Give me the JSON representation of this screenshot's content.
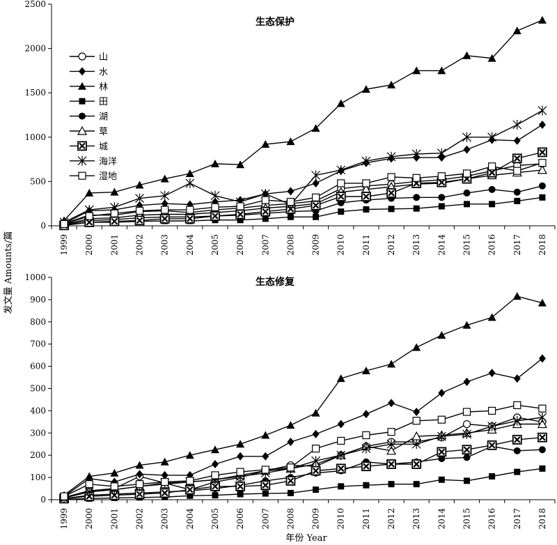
{
  "chart_data": [
    {
      "type": "line",
      "title": "生态保护",
      "xlabel": "",
      "ylabel": "",
      "x": [
        "1999",
        "2000",
        "2001",
        "2002",
        "2003",
        "2004",
        "2005",
        "2006",
        "2007",
        "2008",
        "2009",
        "2010",
        "2011",
        "2012",
        "2013",
        "2014",
        "2015",
        "2016",
        "2017",
        "2018"
      ],
      "ylim": [
        0,
        2500
      ],
      "yticks": [
        0,
        500,
        1000,
        1500,
        2000,
        2500
      ],
      "legend_position": "top-left",
      "series": [
        {
          "name": "山",
          "marker": "circle-open",
          "values": [
            25,
            120,
            120,
            160,
            170,
            150,
            180,
            200,
            230,
            250,
            280,
            420,
            450,
            470,
            500,
            520,
            560,
            620,
            680,
            700
          ]
        },
        {
          "name": "水",
          "marker": "diamond",
          "values": [
            25,
            170,
            180,
            230,
            250,
            240,
            270,
            290,
            360,
            390,
            480,
            620,
            710,
            760,
            770,
            770,
            860,
            970,
            960,
            1140
          ]
        },
        {
          "name": "林",
          "marker": "triangle",
          "values": [
            60,
            370,
            380,
            460,
            530,
            590,
            700,
            690,
            920,
            950,
            1100,
            1380,
            1540,
            1590,
            1750,
            1750,
            1920,
            1890,
            2200,
            2320
          ]
        },
        {
          "name": "田",
          "marker": "square",
          "values": [
            5,
            40,
            40,
            50,
            55,
            55,
            65,
            65,
            80,
            100,
            100,
            160,
            185,
            190,
            195,
            220,
            245,
            245,
            280,
            320
          ]
        },
        {
          "name": "湖",
          "marker": "circle",
          "values": [
            10,
            60,
            70,
            90,
            100,
            100,
            110,
            120,
            140,
            160,
            170,
            260,
            290,
            310,
            320,
            320,
            370,
            410,
            380,
            450
          ]
        },
        {
          "name": "草",
          "marker": "triangle-open",
          "values": [
            15,
            80,
            90,
            120,
            130,
            130,
            150,
            170,
            200,
            220,
            250,
            380,
            410,
            440,
            470,
            480,
            530,
            570,
            600,
            630
          ]
        },
        {
          "name": "城",
          "marker": "boxed-x",
          "values": [
            5,
            40,
            50,
            60,
            80,
            80,
            110,
            130,
            160,
            190,
            230,
            330,
            330,
            370,
            480,
            490,
            530,
            600,
            760,
            830
          ]
        },
        {
          "name": "海洋",
          "marker": "asterisk",
          "values": [
            40,
            180,
            210,
            310,
            340,
            480,
            340,
            270,
            360,
            240,
            570,
            630,
            730,
            780,
            810,
            820,
            1000,
            1000,
            1140,
            1300
          ]
        },
        {
          "name": "湿地",
          "marker": "square-open",
          "values": [
            20,
            110,
            140,
            170,
            180,
            180,
            210,
            220,
            290,
            270,
            320,
            480,
            480,
            550,
            540,
            560,
            590,
            670,
            620,
            710
          ]
        }
      ]
    },
    {
      "type": "line",
      "title": "生态修复",
      "xlabel": "年份 Year",
      "ylabel": "发文量 Amounts/篇",
      "x": [
        "1999",
        "2000",
        "2001",
        "2002",
        "2003",
        "2004",
        "2005",
        "2006",
        "2007",
        "2008",
        "2009",
        "2010",
        "2011",
        "2012",
        "2013",
        "2014",
        "2015",
        "2016",
        "2017",
        "2018"
      ],
      "ylim": [
        0,
        1000
      ],
      "yticks": [
        0,
        100,
        200,
        300,
        400,
        500,
        600,
        700,
        800,
        900,
        1000
      ],
      "series": [
        {
          "name": "山",
          "marker": "circle-open",
          "values": [
            10,
            40,
            50,
            105,
            75,
            45,
            80,
            100,
            130,
            155,
            150,
            200,
            240,
            260,
            260,
            280,
            340,
            330,
            370,
            350
          ]
        },
        {
          "name": "水",
          "marker": "diamond",
          "values": [
            15,
            95,
            80,
            115,
            110,
            110,
            160,
            195,
            195,
            260,
            295,
            340,
            385,
            435,
            395,
            480,
            530,
            570,
            545,
            635
          ]
        },
        {
          "name": "林",
          "marker": "triangle",
          "values": [
            20,
            105,
            120,
            155,
            170,
            200,
            225,
            250,
            290,
            335,
            390,
            545,
            580,
            610,
            685,
            740,
            785,
            820,
            915,
            885
          ]
        },
        {
          "name": "田",
          "marker": "square",
          "values": [
            2,
            5,
            8,
            10,
            12,
            18,
            20,
            25,
            28,
            30,
            45,
            60,
            65,
            70,
            70,
            90,
            85,
            105,
            125,
            140
          ]
        },
        {
          "name": "湖",
          "marker": "circle",
          "values": [
            5,
            20,
            25,
            30,
            35,
            40,
            50,
            65,
            85,
            100,
            120,
            130,
            170,
            160,
            170,
            185,
            190,
            240,
            220,
            225
          ]
        },
        {
          "name": "草",
          "marker": "triangle-open",
          "values": [
            10,
            40,
            45,
            60,
            70,
            80,
            90,
            110,
            130,
            140,
            160,
            200,
            240,
            220,
            285,
            290,
            300,
            315,
            340,
            340
          ]
        },
        {
          "name": "城",
          "marker": "boxed-x",
          "values": [
            5,
            15,
            20,
            25,
            30,
            45,
            60,
            60,
            65,
            85,
            130,
            140,
            150,
            160,
            160,
            215,
            225,
            245,
            270,
            280
          ]
        },
        {
          "name": "海洋",
          "marker": "asterisk",
          "values": [
            8,
            35,
            45,
            60,
            75,
            80,
            90,
            105,
            120,
            140,
            175,
            200,
            230,
            250,
            250,
            285,
            295,
            330,
            355,
            370
          ]
        },
        {
          "name": "湿地",
          "marker": "square-open",
          "values": [
            15,
            70,
            60,
            70,
            80,
            85,
            110,
            125,
            135,
            145,
            230,
            265,
            290,
            305,
            355,
            360,
            395,
            400,
            425,
            410
          ]
        }
      ]
    }
  ]
}
